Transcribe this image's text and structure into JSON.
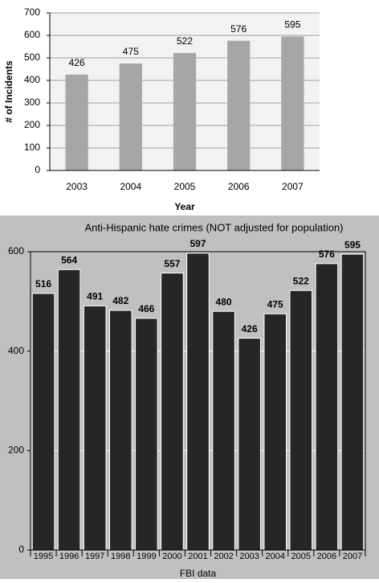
{
  "chart_data": [
    {
      "type": "bar",
      "x_label": "Year",
      "y_label": "# of Incidents",
      "categories": [
        "2003",
        "2004",
        "2005",
        "2006",
        "2007"
      ],
      "values": [
        426,
        475,
        522,
        576,
        595
      ],
      "color": "#a6a6a6",
      "ylim": [
        0,
        700
      ],
      "yticks": [
        0,
        100,
        200,
        300,
        400,
        500,
        600,
        700
      ],
      "grid": true
    },
    {
      "type": "bar",
      "title": "Anti-Hispanic hate crimes (NOT adjusted for population)",
      "x_label": "FBI data",
      "categories": [
        "1995",
        "1996",
        "1997",
        "1998",
        "1999",
        "2000",
        "2001",
        "2002",
        "2003",
        "2004",
        "2005",
        "2006",
        "2007"
      ],
      "values": [
        516,
        564,
        491,
        482,
        466,
        557,
        597,
        480,
        426,
        475,
        522,
        576,
        595
      ],
      "color": "#262626",
      "ylim": [
        0,
        600
      ],
      "yticks": [
        0,
        200,
        400,
        600
      ],
      "grid": true
    }
  ]
}
